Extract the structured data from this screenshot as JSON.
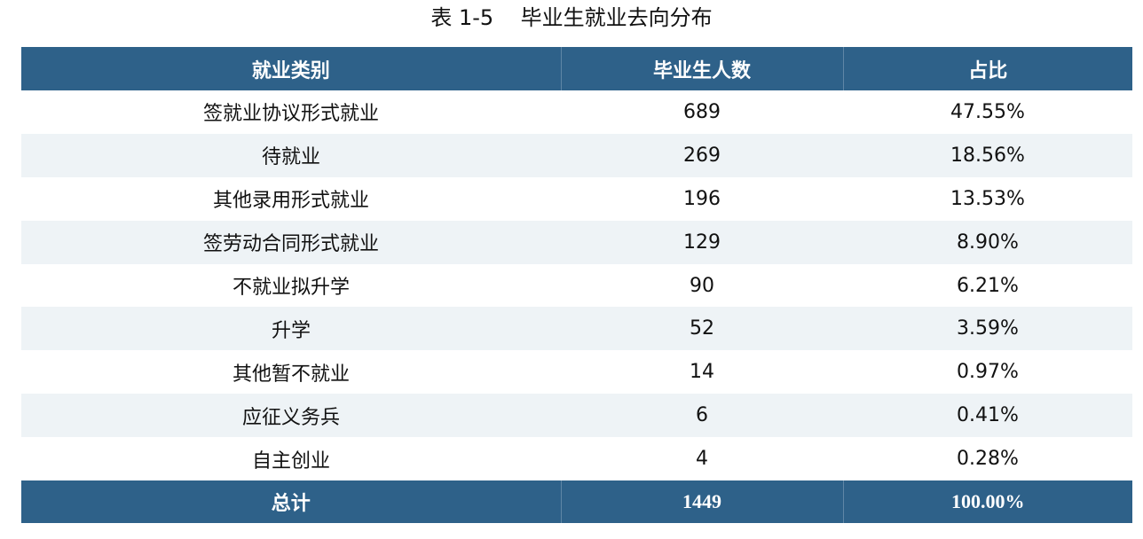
{
  "title": "表 1-5    毕业生就业去向分布",
  "columns": [
    "就业类别",
    "毕业生人数",
    "占比"
  ],
  "rows": [
    [
      "签就业协议形式就业",
      "689",
      "47.55%"
    ],
    [
      "待就业",
      "269",
      "18.56%"
    ],
    [
      "其他录用形式就业",
      "196",
      "13.53%"
    ],
    [
      "签劳动合同形式就业",
      "129",
      "8.90%"
    ],
    [
      "不就业拟升学",
      "90",
      "6.21%"
    ],
    [
      "升学",
      "52",
      "3.59%"
    ],
    [
      "其他暂不就业",
      "14",
      "0.97%"
    ],
    [
      "应征义务兵",
      "6",
      "0.41%"
    ],
    [
      "自主创业",
      "4",
      "0.28%"
    ]
  ],
  "total": [
    "总计",
    "1449",
    "100.00%"
  ],
  "colors": {
    "header": "#2e6189",
    "alt_row": "#eef3f6"
  }
}
